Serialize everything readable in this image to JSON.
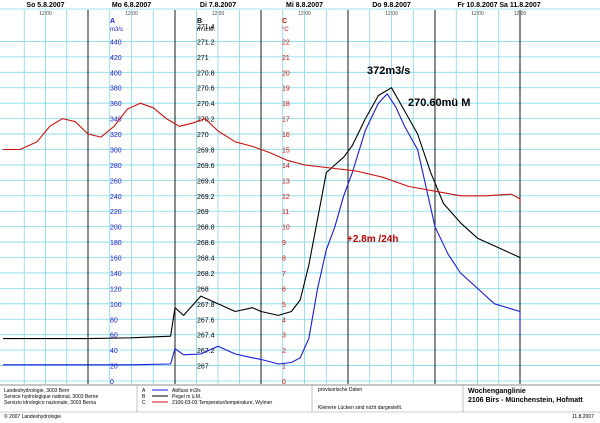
{
  "chart_data": {
    "type": "line",
    "days": [
      {
        "label": "So 5.8.2007",
        "time": "12:00"
      },
      {
        "label": "Mo 6.8.2007",
        "time": "12:00"
      },
      {
        "label": "Di 7.8.2007",
        "time": "12:00"
      },
      {
        "label": "Mi 8.8.2007",
        "time": "12:00"
      },
      {
        "label": "Do 9.8.2007",
        "time": "12:00"
      },
      {
        "label": "Fr 10.8.2007",
        "time": "12:00"
      },
      {
        "label": "Sa 11.8.2007",
        "time": "12:00"
      }
    ],
    "xlim": [
      0,
      7
    ],
    "axes": {
      "A": {
        "letter": "A",
        "unit": "m3/s",
        "min": 0,
        "max": 460,
        "color": "#1a1adb",
        "ticks": [
          0,
          20,
          40,
          60,
          80,
          100,
          120,
          140,
          160,
          180,
          200,
          220,
          240,
          260,
          280,
          300,
          320,
          340,
          360,
          380,
          400,
          420,
          440
        ]
      },
      "B": {
        "letter": "B",
        "unit": "m ü.M.",
        "min": 266.8,
        "max": 271.4,
        "color": "#000000",
        "ticks": [
          "267",
          "267.2",
          "267.4",
          "267.6",
          "267.8",
          "268",
          "268.2",
          "268.4",
          "268.6",
          "268.8",
          "269",
          "269.2",
          "269.4",
          "269.6",
          "269.8",
          "270",
          "270.2",
          "270.4",
          "270.6",
          "270.8",
          "271",
          "271.2",
          "271.4"
        ]
      },
      "C": {
        "letter": "C",
        "unit": "°C",
        "min": 0,
        "max": 23,
        "color": "#d01010",
        "ticks": [
          0,
          1,
          2,
          3,
          4,
          5,
          6,
          7,
          8,
          9,
          10,
          11,
          12,
          13,
          14,
          15,
          16,
          17,
          18,
          19,
          20,
          21,
          22
        ]
      }
    },
    "series": [
      {
        "key": "discharge",
        "axis": "A",
        "color": "#1a1adb",
        "points": [
          [
            0,
            21
          ],
          [
            0.5,
            21
          ],
          [
            1,
            21
          ],
          [
            1.5,
            21
          ],
          [
            1.95,
            22
          ],
          [
            2.0,
            42
          ],
          [
            2.1,
            34
          ],
          [
            2.3,
            35
          ],
          [
            2.5,
            45
          ],
          [
            2.7,
            35
          ],
          [
            2.9,
            30
          ],
          [
            3.0,
            28
          ],
          [
            3.2,
            22
          ],
          [
            3.35,
            24
          ],
          [
            3.45,
            30
          ],
          [
            3.55,
            55
          ],
          [
            3.65,
            120
          ],
          [
            3.75,
            170
          ],
          [
            3.85,
            200
          ],
          [
            3.95,
            240
          ],
          [
            4.05,
            270
          ],
          [
            4.2,
            325
          ],
          [
            4.35,
            360
          ],
          [
            4.45,
            372
          ],
          [
            4.55,
            355
          ],
          [
            4.65,
            330
          ],
          [
            4.8,
            300
          ],
          [
            4.9,
            250
          ],
          [
            5.0,
            200
          ],
          [
            5.15,
            165
          ],
          [
            5.3,
            140
          ],
          [
            5.5,
            120
          ],
          [
            5.7,
            100
          ],
          [
            6.0,
            90
          ],
          [
            6.3,
            80
          ],
          [
            6.6,
            70
          ],
          [
            6.85,
            60
          ]
        ]
      },
      {
        "key": "water_level",
        "axis": "B",
        "color": "#000000",
        "points": [
          [
            0,
            267.35
          ],
          [
            0.5,
            267.35
          ],
          [
            1,
            267.35
          ],
          [
            1.5,
            267.36
          ],
          [
            1.95,
            267.38
          ],
          [
            2.0,
            267.75
          ],
          [
            2.1,
            267.65
          ],
          [
            2.3,
            267.9
          ],
          [
            2.5,
            267.8
          ],
          [
            2.7,
            267.7
          ],
          [
            2.9,
            267.75
          ],
          [
            3.0,
            267.7
          ],
          [
            3.2,
            267.65
          ],
          [
            3.35,
            267.7
          ],
          [
            3.45,
            267.85
          ],
          [
            3.55,
            268.3
          ],
          [
            3.65,
            268.9
          ],
          [
            3.75,
            269.5
          ],
          [
            3.85,
            269.6
          ],
          [
            3.95,
            269.7
          ],
          [
            4.05,
            269.85
          ],
          [
            4.2,
            270.2
          ],
          [
            4.35,
            270.5
          ],
          [
            4.5,
            270.6
          ],
          [
            4.65,
            270.3
          ],
          [
            4.8,
            270.0
          ],
          [
            4.95,
            269.5
          ],
          [
            5.1,
            269.1
          ],
          [
            5.3,
            268.85
          ],
          [
            5.5,
            268.65
          ],
          [
            5.8,
            268.5
          ],
          [
            6.1,
            268.4
          ],
          [
            6.4,
            268.35
          ],
          [
            6.7,
            268.25
          ],
          [
            6.85,
            268.2
          ]
        ]
      },
      {
        "key": "water_temperature",
        "axis": "C",
        "color": "#d01010",
        "points": [
          [
            0,
            15.0
          ],
          [
            0.2,
            15.0
          ],
          [
            0.4,
            15.5
          ],
          [
            0.55,
            16.5
          ],
          [
            0.7,
            17.0
          ],
          [
            0.85,
            16.8
          ],
          [
            1.0,
            16.0
          ],
          [
            1.15,
            15.8
          ],
          [
            1.3,
            16.5
          ],
          [
            1.45,
            17.6
          ],
          [
            1.6,
            18.0
          ],
          [
            1.75,
            17.7
          ],
          [
            1.9,
            17.0
          ],
          [
            2.05,
            16.5
          ],
          [
            2.2,
            16.7
          ],
          [
            2.35,
            17.0
          ],
          [
            2.5,
            16.2
          ],
          [
            2.7,
            15.5
          ],
          [
            2.9,
            15.2
          ],
          [
            3.1,
            14.8
          ],
          [
            3.3,
            14.3
          ],
          [
            3.5,
            14.0
          ],
          [
            3.8,
            13.8
          ],
          [
            4.1,
            13.6
          ],
          [
            4.4,
            13.2
          ],
          [
            4.7,
            12.6
          ],
          [
            5.0,
            12.3
          ],
          [
            5.3,
            12.0
          ],
          [
            5.6,
            12.0
          ],
          [
            5.9,
            12.1
          ],
          [
            6.2,
            11.8
          ],
          [
            6.5,
            11.6
          ],
          [
            6.85,
            11.6
          ]
        ]
      }
    ],
    "annotations": {
      "peak_discharge": "372m3/s",
      "peak_level": "270.60mü M",
      "rise": "+2.8m /24h"
    },
    "grid": true
  },
  "footer": {
    "org1": "Landeshydrologie, 3003 Bern",
    "org2": "Service hydrologique national, 3003 Berne",
    "org3": "Servizio idrologico nazionale, 3003 Berna",
    "legend": [
      {
        "letter": "A",
        "text": "Abfluss m3/s"
      },
      {
        "letter": "B",
        "text": "Pegel m ü.M."
      },
      {
        "letter": "C",
        "text": "2106-03-03  Temperatur/température, Wylmer"
      }
    ],
    "note1": "provisorische Daten",
    "note2": "Kleinere Lücken sind nicht dargestellt.",
    "title1": "Wochenganglinie",
    "title2": "2106 Birs - Münchenstein, Hofmatt",
    "copyright": "© 2007 Landeshydrologie",
    "date": "11.8.2007"
  }
}
